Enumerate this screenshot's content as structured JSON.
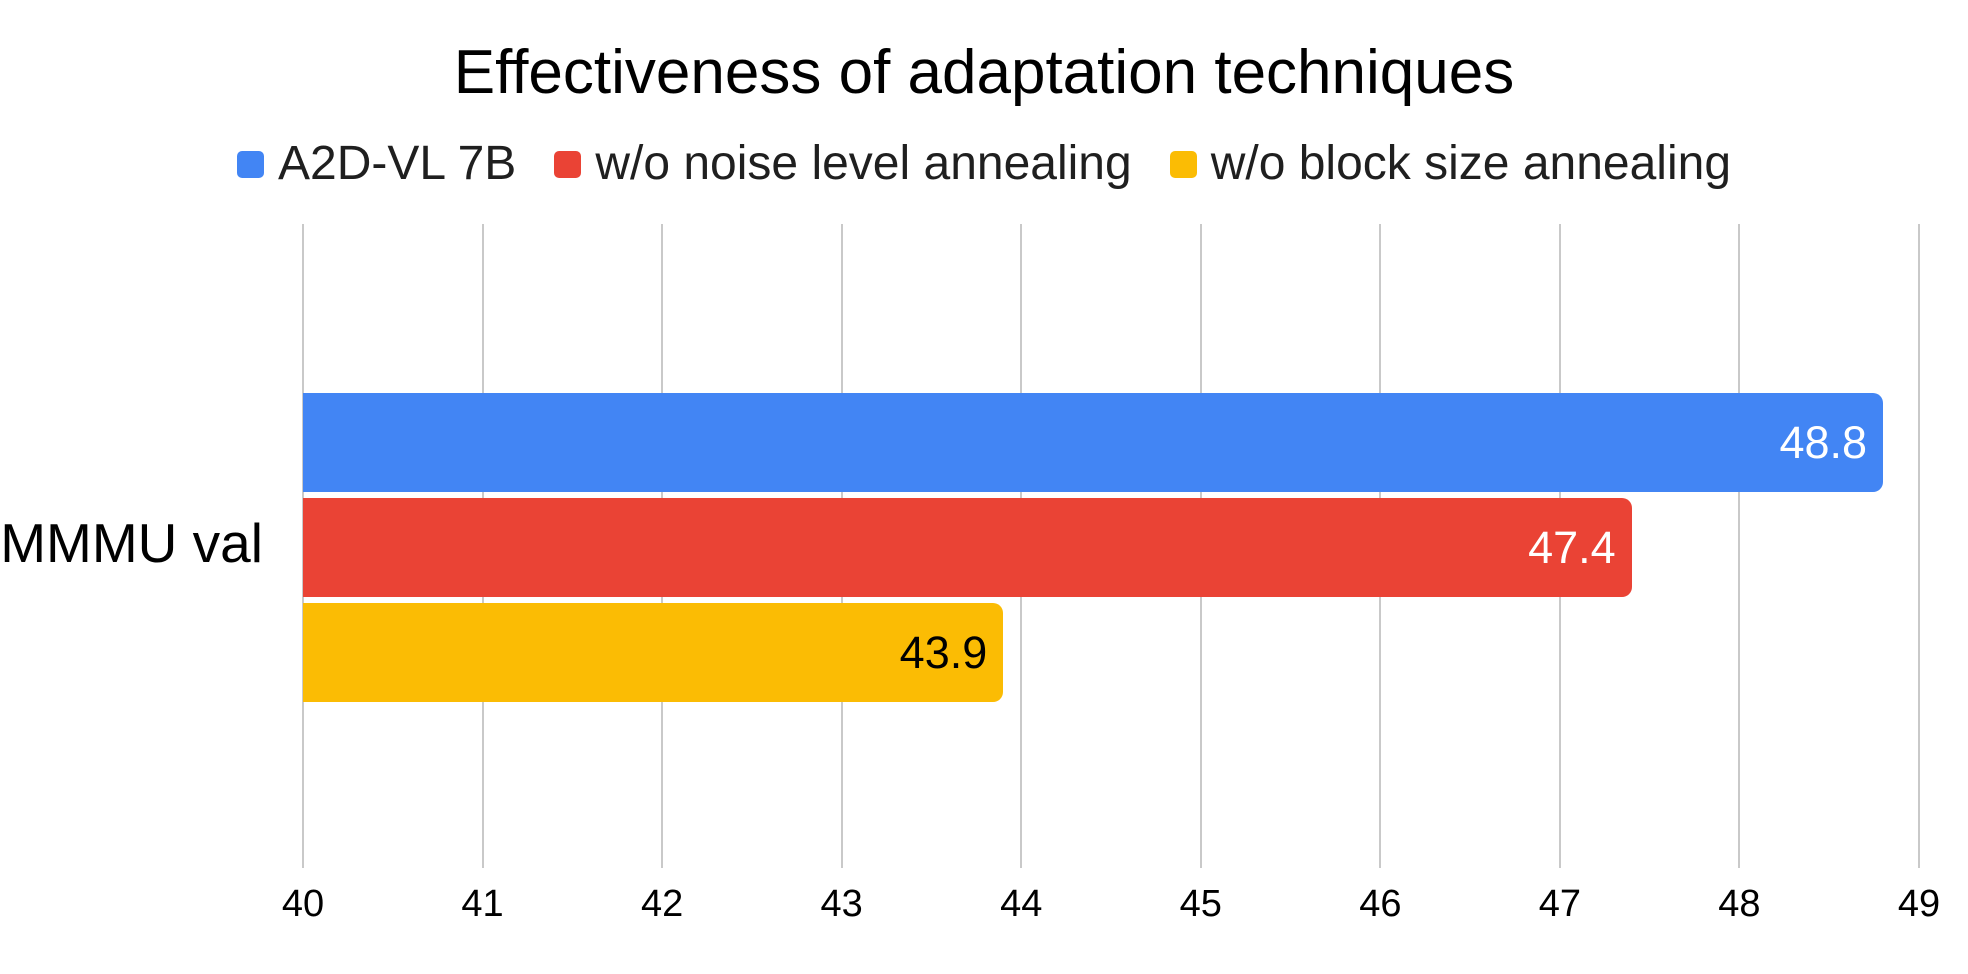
{
  "title": "Effectiveness of adaptation techniques",
  "chart_data": {
    "type": "bar",
    "orientation": "horizontal",
    "title": "Effectiveness of adaptation techniques",
    "categories": [
      "MMMU val"
    ],
    "series": [
      {
        "name": "A2D-VL 7B",
        "values": [
          48.8
        ],
        "color": "#4285f4",
        "value_label_color": "#ffffff"
      },
      {
        "name": "w/o noise level annealing",
        "values": [
          47.4
        ],
        "color": "#ea4335",
        "value_label_color": "#ffffff"
      },
      {
        "name": "w/o block size annealing",
        "values": [
          43.9
        ],
        "color": "#fbbc04",
        "value_label_color": "#000000"
      }
    ],
    "xlim": [
      40,
      49
    ],
    "x_ticks": [
      "40",
      "41",
      "42",
      "43",
      "44",
      "45",
      "46",
      "47",
      "48",
      "49"
    ],
    "grid": true,
    "legend_position": "top",
    "data_labels": "inside-end",
    "colors": {
      "background": "#ffffff",
      "gridline": "#c9c9c9",
      "title_text": "#000000",
      "legend_text": "#1f1f1f",
      "axis_text": "#000000"
    }
  }
}
